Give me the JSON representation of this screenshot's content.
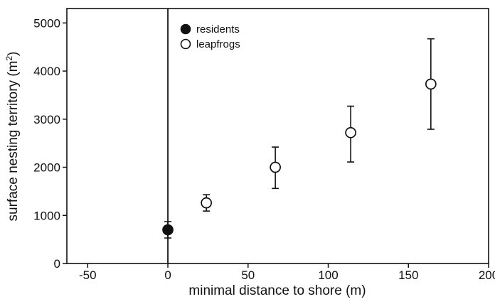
{
  "chart_data": {
    "type": "scatter",
    "xlabel": "minimal distance to shore (m)",
    "ylabel_main": "surface nesting territory (m",
    "ylabel_sup": "2",
    "ylabel_close": ")",
    "xlim": [
      -63,
      200
    ],
    "ylim": [
      0,
      5300
    ],
    "xticks": [
      -50,
      0,
      50,
      100,
      150,
      200
    ],
    "yticks": [
      0,
      1000,
      2000,
      3000,
      4000,
      5000
    ],
    "xtick_labels": [
      "-50",
      "0",
      "50",
      "100",
      "150",
      "200"
    ],
    "ytick_labels": [
      "0",
      "1000",
      "2000",
      "3000",
      "4000",
      "5000"
    ],
    "reference_line_x": 0,
    "legend_position": "top-center",
    "series": [
      {
        "name": "residents",
        "marker": "filled-circle",
        "points": [
          {
            "x": 0,
            "y": 700,
            "err_low": 530,
            "err_high": 870
          }
        ]
      },
      {
        "name": "leapfrogs",
        "marker": "open-circle",
        "points": [
          {
            "x": 24,
            "y": 1260,
            "err_low": 1090,
            "err_high": 1430
          },
          {
            "x": 67,
            "y": 2000,
            "err_low": 1560,
            "err_high": 2420
          },
          {
            "x": 114,
            "y": 2720,
            "err_low": 2110,
            "err_high": 3270
          },
          {
            "x": 164,
            "y": 3730,
            "err_low": 2790,
            "err_high": 4670
          }
        ]
      }
    ]
  }
}
